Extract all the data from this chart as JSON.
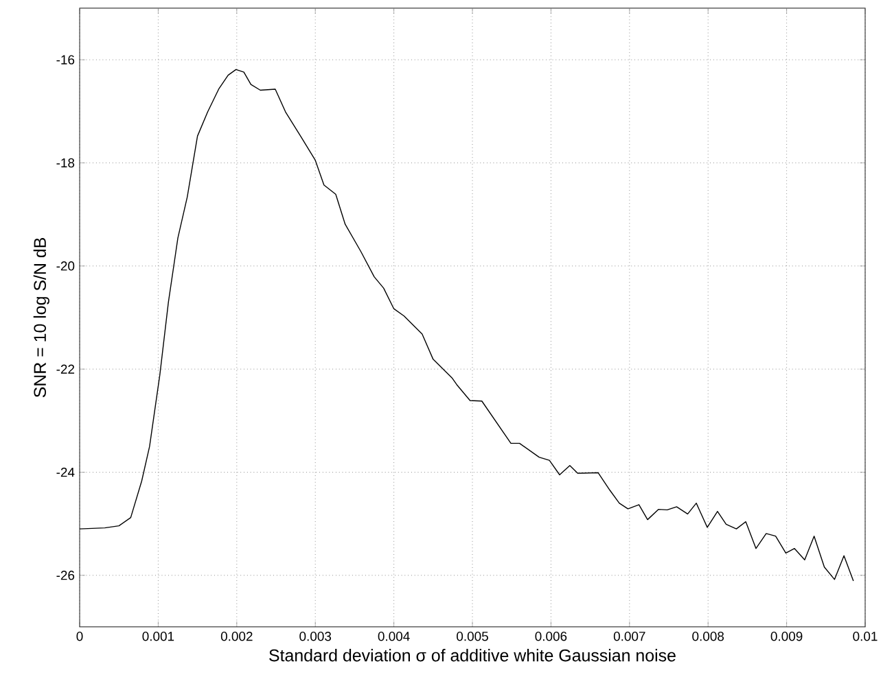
{
  "chart_data": {
    "type": "line",
    "xlabel": "Standard deviation σ of additive white Gaussian noise",
    "ylabel": "SNR = 10 log S/N dB",
    "xlim": [
      0,
      0.01
    ],
    "ylim": [
      -27,
      -15
    ],
    "xticks": [
      0,
      0.001,
      0.002,
      0.003,
      0.004,
      0.005,
      0.006,
      0.007,
      0.008,
      0.009,
      0.01
    ],
    "yticks": [
      -26,
      -24,
      -22,
      -20,
      -18,
      -16
    ],
    "grid": true,
    "marker": "none",
    "line_style": "solid",
    "x": [
      0,
      0.00032,
      0.0005,
      0.00065,
      0.00079,
      0.00089,
      0.00102,
      0.00113,
      0.00125,
      0.00137,
      0.0015,
      0.00163,
      0.00177,
      0.00189,
      0.00199,
      0.00209,
      0.00218,
      0.0023,
      0.00249,
      0.00262,
      0.00282,
      0.003,
      0.00311,
      0.00326,
      0.00338,
      0.00358,
      0.00375,
      0.00387,
      0.004,
      0.00413,
      0.00436,
      0.0045,
      0.00474,
      0.0048,
      0.00497,
      0.00512,
      0.00549,
      0.0056,
      0.00585,
      0.00598,
      0.00611,
      0.00624,
      0.00634,
      0.0066,
      0.00675,
      0.00687,
      0.00698,
      0.00712,
      0.00723,
      0.00737,
      0.00748,
      0.0076,
      0.00774,
      0.00785,
      0.00799,
      0.00812,
      0.00823,
      0.00836,
      0.00848,
      0.00861,
      0.00874,
      0.00886,
      0.00899,
      0.0091,
      0.00923,
      0.00935,
      0.00948,
      0.00961,
      0.00973,
      0.00985
    ],
    "series": [
      {
        "color": "#000000",
        "values": [
          -25.1,
          -25.08,
          -25.04,
          -24.88,
          -24.17,
          -23.5,
          -22.12,
          -20.7,
          -19.46,
          -18.66,
          -17.48,
          -17.01,
          -16.57,
          -16.3,
          -16.19,
          -16.24,
          -16.48,
          -16.59,
          -16.57,
          -17.01,
          -17.5,
          -17.95,
          -18.43,
          -18.61,
          -19.19,
          -19.72,
          -20.21,
          -20.43,
          -20.83,
          -20.97,
          -21.32,
          -21.81,
          -22.17,
          -22.3,
          -22.61,
          -22.62,
          -23.44,
          -23.44,
          -23.71,
          -23.77,
          -24.05,
          -23.87,
          -24.02,
          -24.01,
          -24.35,
          -24.6,
          -24.71,
          -24.63,
          -24.92,
          -24.72,
          -24.73,
          -24.67,
          -24.81,
          -24.6,
          -25.07,
          -24.76,
          -25.01,
          -25.1,
          -24.96,
          -25.48,
          -25.19,
          -25.24,
          -25.57,
          -25.48,
          -25.7,
          -25.24,
          -25.84,
          -26.08,
          -25.62,
          -26.11
        ]
      }
    ]
  }
}
